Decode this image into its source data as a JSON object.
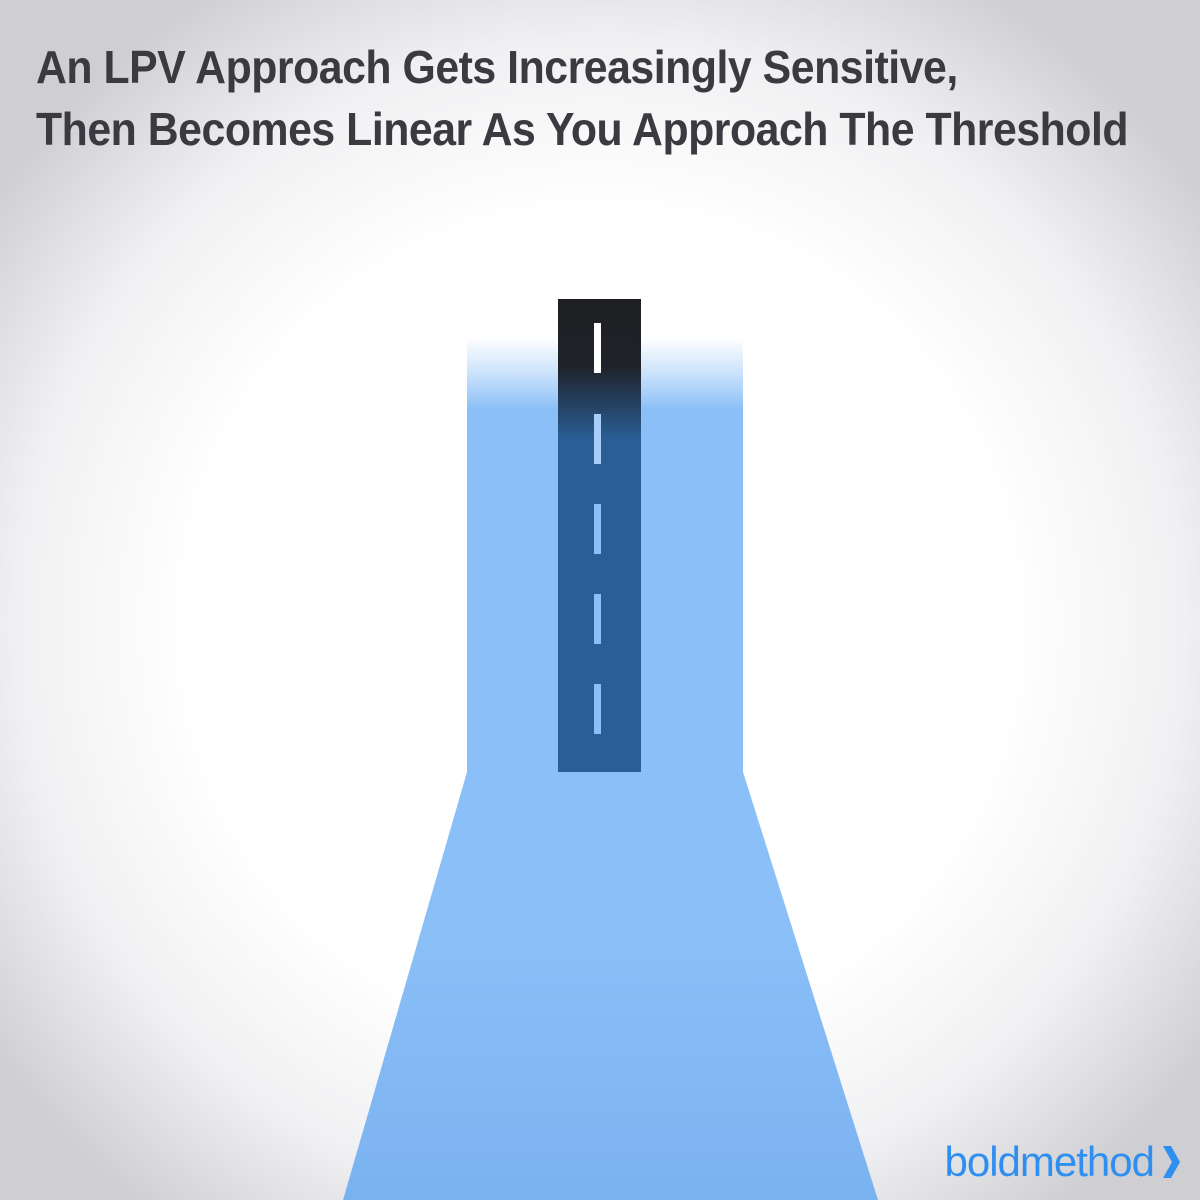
{
  "title": {
    "line1": "An LPV Approach Gets Increasingly Sensitive,",
    "line2": "Then Becomes Linear As You Approach The Threshold"
  },
  "logo": {
    "text": "boldmethod",
    "icon": "chevron-right-icon"
  },
  "colors": {
    "title": "#3a3a40",
    "beam": "#8bbff7",
    "beam_bottom": "#7ab2f0",
    "runway": "#2a5f96",
    "runway_far": "#1e1f22",
    "centerline": "#8bbff7",
    "centerline_far": "#ffffff",
    "brand": "#2e8ff0"
  }
}
